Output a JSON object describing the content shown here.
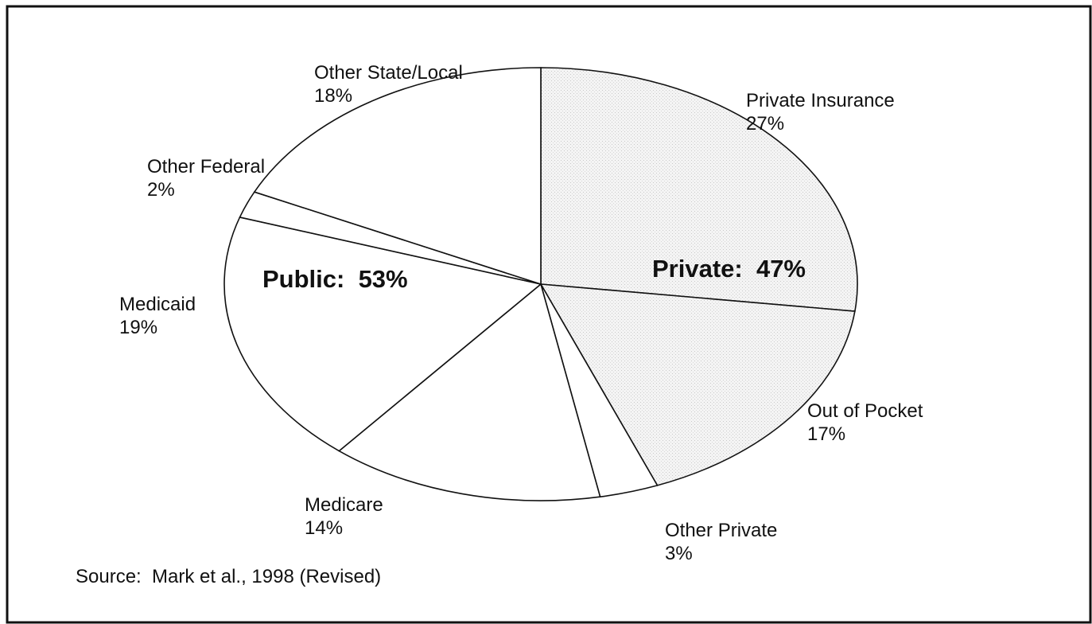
{
  "chart_data": {
    "type": "pie",
    "categories": [
      "Private Insurance",
      "Out of Pocket",
      "Other Private",
      "Medicare",
      "Medicaid",
      "Other Federal",
      "Other State/Local"
    ],
    "values": [
      27,
      17,
      3,
      14,
      19,
      2,
      18
    ],
    "value_labels": [
      "27%",
      "17%",
      "3%",
      "14%",
      "19%",
      "2%",
      "18%"
    ],
    "colors": [
      "shade",
      "shade",
      "#ffffff",
      "#ffffff",
      "#ffffff",
      "#ffffff",
      "#ffffff"
    ],
    "annotations": [
      "Public:  53%",
      "Private:  47%"
    ],
    "source": "Source:  Mark et al., 1998 (Revised)"
  }
}
